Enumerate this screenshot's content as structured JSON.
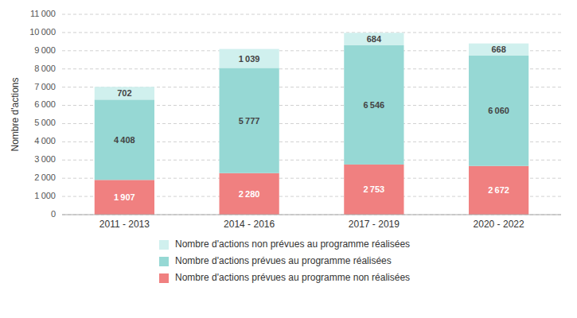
{
  "chart_data": {
    "type": "bar",
    "stacked": true,
    "ylabel": "Nombre d'actions",
    "categories": [
      "2011 - 2013",
      "2014 - 2016",
      "2017 - 2019",
      "2020 - 2022"
    ],
    "series": [
      {
        "name": "Nombre d'actions prévues au programme non réalisées",
        "color": "#f08080",
        "values": [
          1907,
          2280,
          2753,
          2672
        ],
        "value_labels": [
          "1 907",
          "2 280",
          "2 753",
          "2 672"
        ]
      },
      {
        "name": "Nombre d'actions prévues au programme réalisées",
        "color": "#96d8d4",
        "values": [
          4408,
          5777,
          6546,
          6060
        ],
        "value_labels": [
          "4 408",
          "5 777",
          "6 546",
          "6 060"
        ]
      },
      {
        "name": "Nombre d'actions non prévues au programme réalisées",
        "color": "#d0f0ee",
        "values": [
          702,
          1039,
          684,
          668
        ],
        "value_labels": [
          "702",
          "1 039",
          "684",
          "668"
        ]
      }
    ],
    "ylim": [
      0,
      11000
    ],
    "yticks": [
      0,
      {
        "value": 1000,
        "label": "1 000"
      },
      {
        "value": 2000,
        "label": "2 000"
      },
      {
        "value": 3000,
        "label": "3 000"
      },
      {
        "value": 4000,
        "label": "4 000"
      },
      {
        "value": 5000,
        "label": "5 000"
      },
      {
        "value": 6000,
        "label": "6 000"
      },
      {
        "value": 7000,
        "label": "7 000"
      },
      {
        "value": 8000,
        "label": "8 000"
      },
      {
        "value": 9000,
        "label": "9 000"
      },
      {
        "value": 10000,
        "label": "10 000"
      },
      {
        "value": 11000,
        "label": "11 000"
      }
    ],
    "grid": true,
    "data_labels": true,
    "legend": "bottom"
  }
}
